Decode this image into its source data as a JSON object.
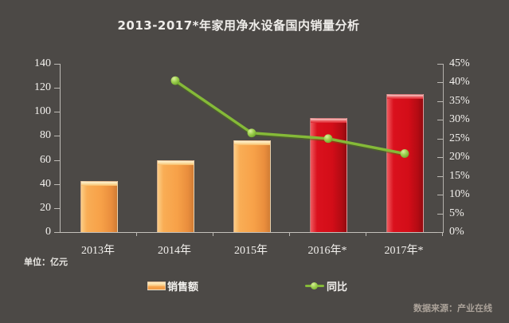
{
  "title": "2013-2017*年家用净水设备国内销量分析",
  "unit_note": "单位：亿元",
  "source_note": "数据来源：产业在线",
  "legend": {
    "sales_label": "销售额",
    "yoy_label": "同比"
  },
  "colors": {
    "background": "#4c4946",
    "orange_bar": "#f7a148",
    "red_bar": "#d30d18",
    "line_green": "#85ba38",
    "axis_line": "#bdbab5",
    "text": "#f3f1ee",
    "source_text": "#aba299"
  },
  "chart_data": {
    "type": "bar+line",
    "title": "2013-2017*年家用净水设备国内销量分析",
    "categories": [
      "2013年",
      "2014年",
      "2015年",
      "2016年*",
      "2017年*"
    ],
    "series": [
      {
        "name": "销售额",
        "type": "bar",
        "axis": "left",
        "unit": "亿元",
        "values": [
          42.5,
          60,
          76,
          95,
          115
        ],
        "bar_colors": [
          "orange",
          "orange",
          "orange",
          "red",
          "red"
        ]
      },
      {
        "name": "同比",
        "type": "line",
        "axis": "right",
        "unit": "%",
        "values": [
          null,
          40.5,
          26.5,
          25,
          21
        ]
      }
    ],
    "left_axis": {
      "min": 0,
      "max": 140,
      "tick_step": 20,
      "ticks": [
        0,
        20,
        40,
        60,
        80,
        100,
        120,
        140
      ]
    },
    "right_axis": {
      "min": 0,
      "max": 45,
      "tick_step": 5,
      "tick_labels": [
        "0%",
        "5%",
        "10%",
        "15%",
        "20%",
        "25%",
        "30%",
        "35%",
        "40%",
        "45%"
      ]
    },
    "legend_position": "bottom",
    "grid": false
  }
}
